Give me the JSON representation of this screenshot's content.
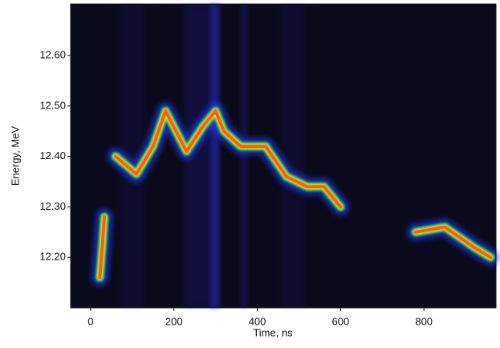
{
  "chart_data": {
    "type": "line",
    "xlabel": "Time, ns",
    "ylabel": "Energy, MeV",
    "x": [
      22,
      28,
      33,
      45,
      60,
      110,
      150,
      180,
      230,
      270,
      300,
      320,
      360,
      420,
      470,
      520,
      560,
      600,
      700,
      780,
      850,
      920,
      960
    ],
    "series": [
      {
        "color": "#ff5a1e",
        "values": [
          12.16,
          12.22,
          12.28,
          null,
          12.4,
          12.365,
          12.42,
          12.49,
          12.41,
          12.46,
          12.49,
          12.45,
          12.42,
          12.42,
          12.36,
          12.34,
          12.34,
          12.3,
          null,
          12.25,
          12.26,
          12.22,
          12.2
        ]
      }
    ],
    "xlim": [
      -48,
      973
    ],
    "ylim": [
      12.1,
      12.702
    ],
    "xticks": [
      0,
      200,
      400,
      600,
      800
    ],
    "yticks": [
      {
        "value": 12.2,
        "label": "12.20"
      },
      {
        "value": 12.3,
        "label": "12.30"
      },
      {
        "value": 12.4,
        "label": "12.40"
      },
      {
        "value": 12.5,
        "label": "12.50"
      },
      {
        "value": 12.6,
        "label": "12.60"
      }
    ],
    "background": "#0b0a1c"
  }
}
